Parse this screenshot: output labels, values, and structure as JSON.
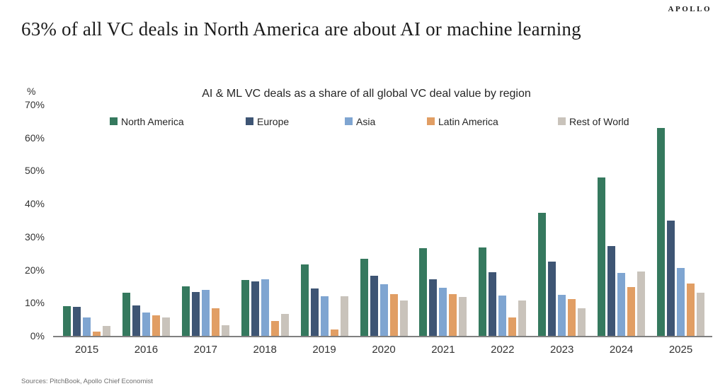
{
  "brand": {
    "logo": "APOLLO"
  },
  "headline": "63% of all VC deals in North America are about AI or machine learning",
  "source_note": "Sources: PitchBook, Apollo Chief Economist",
  "chart_data": {
    "type": "bar",
    "title": "AI & ML VC deals as a share of all global VC deal value by region",
    "y_axis_unit": "%",
    "categories": [
      "2015",
      "2016",
      "2017",
      "2018",
      "2019",
      "2020",
      "2021",
      "2022",
      "2023",
      "2024",
      "2025"
    ],
    "series": [
      {
        "name": "North America",
        "color": "#35795E",
        "values": [
          9,
          13,
          15,
          17,
          21.7,
          23.3,
          26.6,
          26.8,
          37.2,
          48,
          63
        ]
      },
      {
        "name": "Europe",
        "color": "#3E5574",
        "values": [
          8.7,
          9.3,
          13.3,
          16.5,
          14.4,
          18.2,
          17.2,
          19.2,
          22.5,
          27.2,
          34.8
        ]
      },
      {
        "name": "Asia",
        "color": "#7FA5D1",
        "values": [
          5.5,
          7,
          14,
          17.2,
          12,
          15.7,
          14.6,
          12.2,
          12.5,
          19,
          20.5
        ]
      },
      {
        "name": "Latin America",
        "color": "#E19E64",
        "values": [
          1.3,
          6.3,
          8.3,
          4.5,
          2,
          12.6,
          12.6,
          5.6,
          11.2,
          14.7,
          15.8
        ]
      },
      {
        "name": "Rest of World",
        "color": "#C9C3BB",
        "values": [
          3,
          5.5,
          3.3,
          6.6,
          12,
          10.8,
          11.8,
          10.6,
          8.4,
          19.4,
          13
        ]
      }
    ],
    "y_ticks": [
      0,
      10,
      20,
      30,
      40,
      50,
      60,
      70
    ],
    "ylim": [
      0,
      70
    ],
    "grid": false,
    "legend_position": "top"
  }
}
